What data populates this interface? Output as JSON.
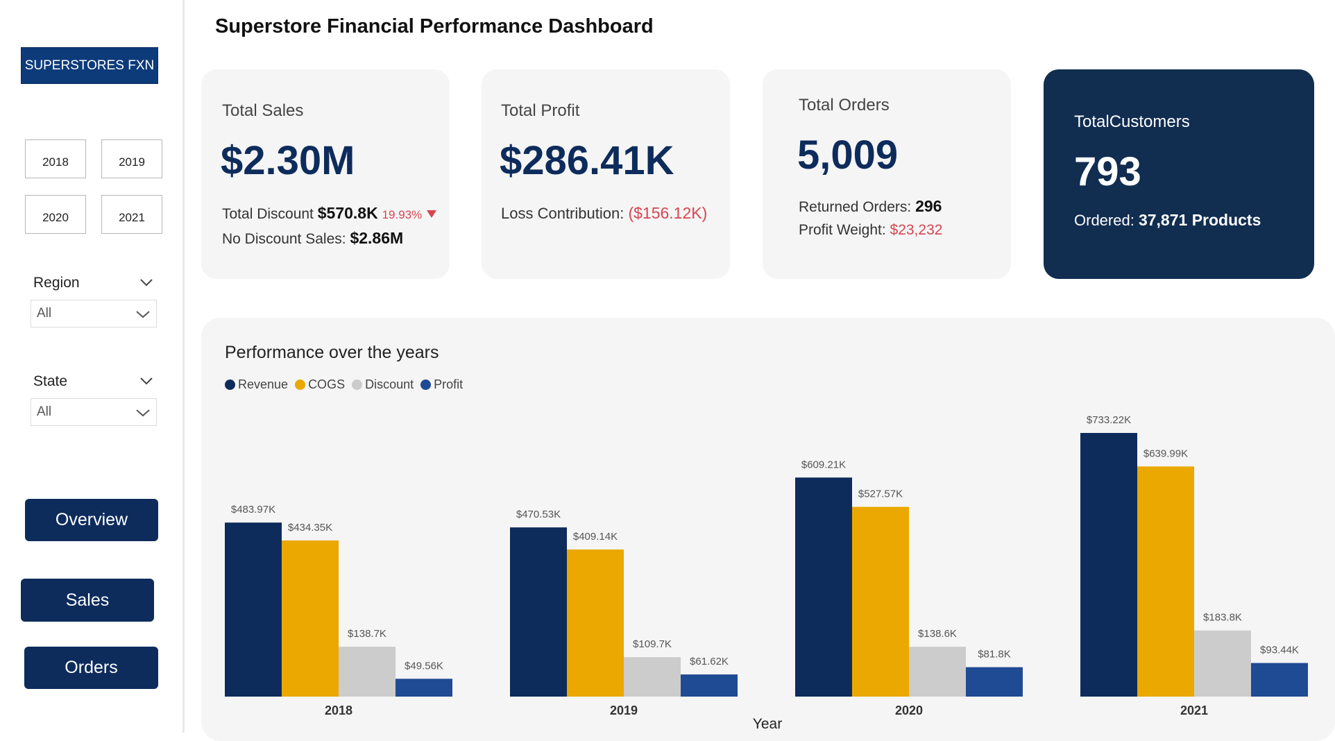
{
  "sidebar": {
    "brand": "SUPERSTORES FXN",
    "years": [
      "2018",
      "2019",
      "2020",
      "2021"
    ],
    "region": {
      "title": "Region",
      "value": "All"
    },
    "state": {
      "title": "State",
      "value": "All"
    },
    "nav": {
      "overview": "Overview",
      "sales": "Sales",
      "orders": "Orders"
    }
  },
  "page_title": "Superstore Financial Performance Dashboard",
  "cards": {
    "sales": {
      "label": "Total Sales",
      "value": "$2.30M",
      "discount_label": "Total Discount",
      "discount_value": "$570.8K",
      "discount_pct": "19.93%",
      "no_discount_label": "No Discount Sales:",
      "no_discount_value": "$2.86M"
    },
    "profit": {
      "label": "Total Profit",
      "value": "$286.41K",
      "loss_label": "Loss Contribution:",
      "loss_value": "($156.12K)"
    },
    "orders": {
      "label": "Total Orders",
      "value": "5,009",
      "returned_label": "Returned Orders:",
      "returned_value": "296",
      "weight_label": "Profit Weight:",
      "weight_value": "$23,232"
    },
    "customers": {
      "label": "TotalCustomers",
      "value": "793",
      "ordered_label": "Ordered:",
      "ordered_value": "37,871 Products"
    }
  },
  "colors": {
    "revenue": "#0d2c5c",
    "cogs": "#eaa800",
    "discount": "#cccccc",
    "profit": "#1f4a94"
  },
  "chart_data": {
    "type": "bar",
    "title": "Performance over the years",
    "xlabel": "Year",
    "ylabel": "",
    "categories": [
      "2018",
      "2019",
      "2020",
      "2021"
    ],
    "series": [
      {
        "name": "Revenue",
        "values": [
          483.97,
          470.53,
          609.21,
          733.22
        ],
        "labels": [
          "$483.97K",
          "$470.53K",
          "$609.21K",
          "$733.22K"
        ]
      },
      {
        "name": "COGS",
        "values": [
          434.35,
          409.14,
          527.57,
          639.99
        ],
        "labels": [
          "$434.35K",
          "$409.14K",
          "$527.57K",
          "$639.99K"
        ]
      },
      {
        "name": "Discount",
        "values": [
          138.7,
          109.7,
          138.6,
          183.8
        ],
        "labels": [
          "$138.7K",
          "$109.7K",
          "$138.6K",
          "$183.8K"
        ]
      },
      {
        "name": "Profit",
        "values": [
          49.56,
          61.62,
          81.8,
          93.44
        ],
        "labels": [
          "$49.56K",
          "$61.62K",
          "$81.8K",
          "$93.44K"
        ]
      }
    ],
    "units": "K (thousands of $)",
    "ylim": [
      0,
      733.22
    ],
    "legend": "top-left",
    "grid": false
  }
}
